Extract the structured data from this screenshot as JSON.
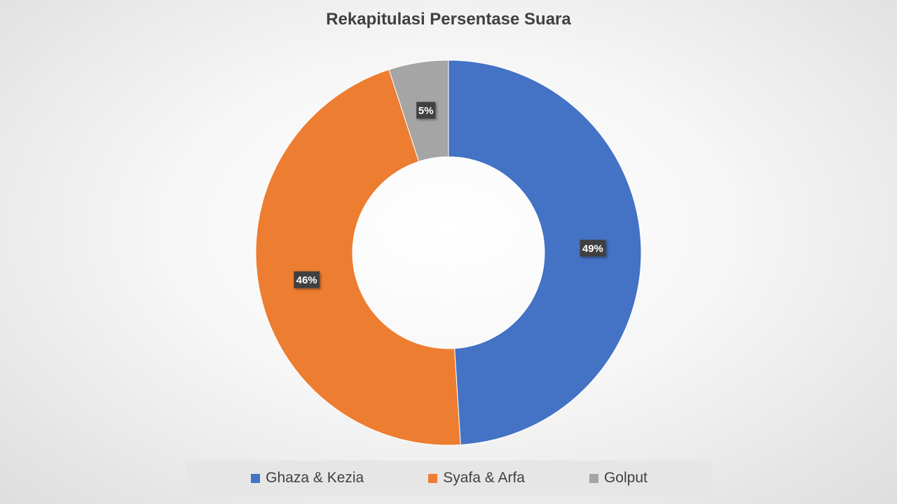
{
  "chart_data": {
    "type": "pie",
    "donut": true,
    "title": "Rekapitulasi Persentase Suara",
    "categories": [
      "Ghaza & Kezia",
      "Syafa & Arfa",
      "Golput"
    ],
    "values": [
      49,
      46,
      5
    ],
    "labels": [
      "49%",
      "46%",
      "5%"
    ],
    "colors": [
      "#4472C4",
      "#ED7D31",
      "#A5A5A5"
    ],
    "legend_position": "bottom"
  }
}
